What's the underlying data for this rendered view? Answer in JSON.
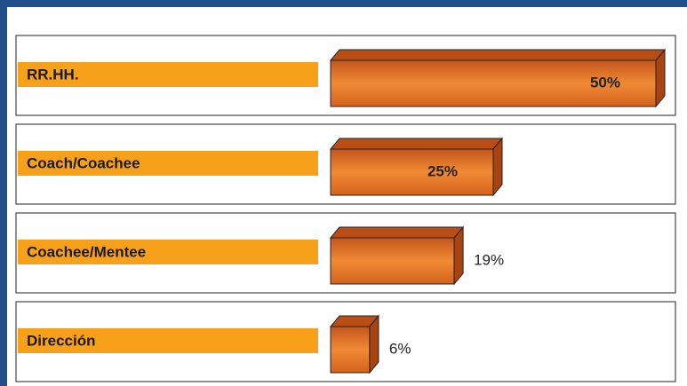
{
  "chart_data": {
    "type": "bar3d",
    "categories": [
      "RR.HH.",
      "Coach/Coachee",
      "Coachee/Mentee",
      "Dirección"
    ],
    "values": [
      50,
      25,
      19,
      6
    ],
    "value_labels": [
      "50%",
      "25%",
      "19%",
      "6%"
    ],
    "color": "#e8741e",
    "label_color": "#f7a11a"
  }
}
